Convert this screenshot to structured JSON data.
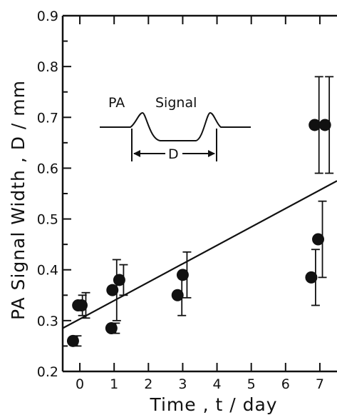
{
  "chart_data": {
    "type": "scatter",
    "xlabel": "Time , t / day",
    "ylabel": "PA Signal Width , D / mm",
    "xlim": [
      -0.5,
      7.5
    ],
    "ylim": [
      0.2,
      0.9
    ],
    "x_ticks": [
      "0",
      "1",
      "2",
      "3",
      "4",
      "5",
      "6",
      "7"
    ],
    "y_ticks": [
      "0.2",
      "0.3",
      "0.4",
      "0.5",
      "0.6",
      "0.7",
      "0.8",
      "0.9"
    ],
    "points": [
      {
        "x": -0.2,
        "y": 0.26,
        "err": 0.01
      },
      {
        "x": -0.05,
        "y": 0.33,
        "err": 0.02
      },
      {
        "x": 0.05,
        "y": 0.33,
        "err": 0.025
      },
      {
        "x": 0.92,
        "y": 0.285,
        "err": 0.01
      },
      {
        "x": 0.95,
        "y": 0.36,
        "err": 0.06
      },
      {
        "x": 1.15,
        "y": 0.38,
        "err": 0.03
      },
      {
        "x": 2.85,
        "y": 0.35,
        "err": 0.04
      },
      {
        "x": 3.0,
        "y": 0.39,
        "err": 0.045
      },
      {
        "x": 6.75,
        "y": 0.385,
        "err": 0.055
      },
      {
        "x": 6.85,
        "y": 0.685,
        "err": 0.095
      },
      {
        "x": 6.95,
        "y": 0.46,
        "err": 0.075
      },
      {
        "x": 7.15,
        "y": 0.685,
        "err": 0.095
      }
    ],
    "fit_line": {
      "x": [
        -0.5,
        7.5
      ],
      "y": [
        0.285,
        0.575
      ]
    },
    "inset": {
      "label_pa": "PA",
      "label_signal": "Signal",
      "label_d": "D"
    }
  }
}
